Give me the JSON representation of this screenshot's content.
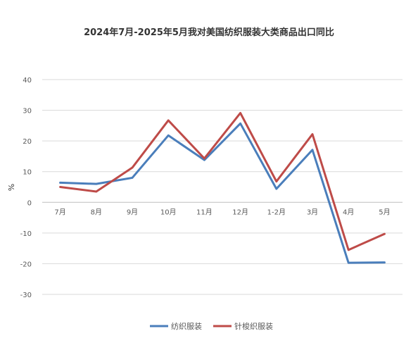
{
  "chart_data": {
    "type": "line",
    "title": "2024年7月-2025年5月我对美国纺织服装大类商品出口同比",
    "xlabel": "",
    "ylabel": "%",
    "ylim": [
      -30,
      40
    ],
    "yticks": [
      40,
      30,
      20,
      10,
      0,
      -10,
      -20,
      -30
    ],
    "grid": true,
    "legend_position": "bottom",
    "categories": [
      "7月",
      "8月",
      "9月",
      "10月",
      "11月",
      "12月",
      "1-2月",
      "3月",
      "4月",
      "5月"
    ],
    "series": [
      {
        "name": "纺织服装",
        "color": "#4A7EBB",
        "values": [
          6.4,
          6.0,
          8.0,
          21.8,
          13.8,
          25.7,
          4.4,
          17.1,
          -19.7,
          -19.6
        ]
      },
      {
        "name": "针梭织服装",
        "color": "#BE4B48",
        "values": [
          5.0,
          3.5,
          11.3,
          26.7,
          14.3,
          29.1,
          6.8,
          22.2,
          -15.5,
          -10.3
        ]
      }
    ]
  }
}
